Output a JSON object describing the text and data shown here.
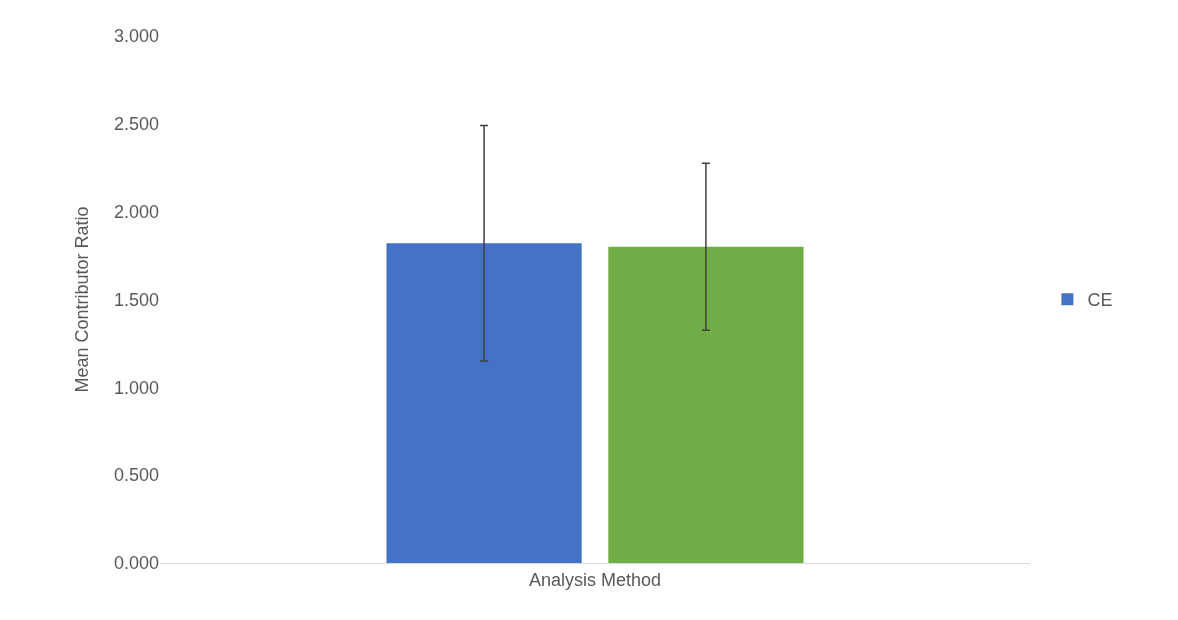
{
  "chart_data": {
    "type": "bar",
    "xlabel": "Analysis Method",
    "ylabel": "Mean Contributor Ratio",
    "categories": [
      null
    ],
    "series": [
      {
        "name": "CE",
        "color": "#4472c4",
        "values": [
          1.82
        ],
        "errors": [
          0.67
        ]
      },
      {
        "color": "#70ad47",
        "values": [
          1.8
        ],
        "errors": [
          0.475
        ]
      }
    ],
    "ylim": [
      0,
      3
    ],
    "yticks": [
      {
        "value": 0,
        "label": "0.000"
      },
      {
        "value": 0.5,
        "label": "0.500"
      },
      {
        "value": 1,
        "label": "1.000"
      },
      {
        "value": 1.5,
        "label": "1.500"
      },
      {
        "value": 2,
        "label": "2.000"
      },
      {
        "value": 2.5,
        "label": "2.500"
      },
      {
        "value": 3,
        "label": "3.000"
      }
    ],
    "legend": "right"
  }
}
